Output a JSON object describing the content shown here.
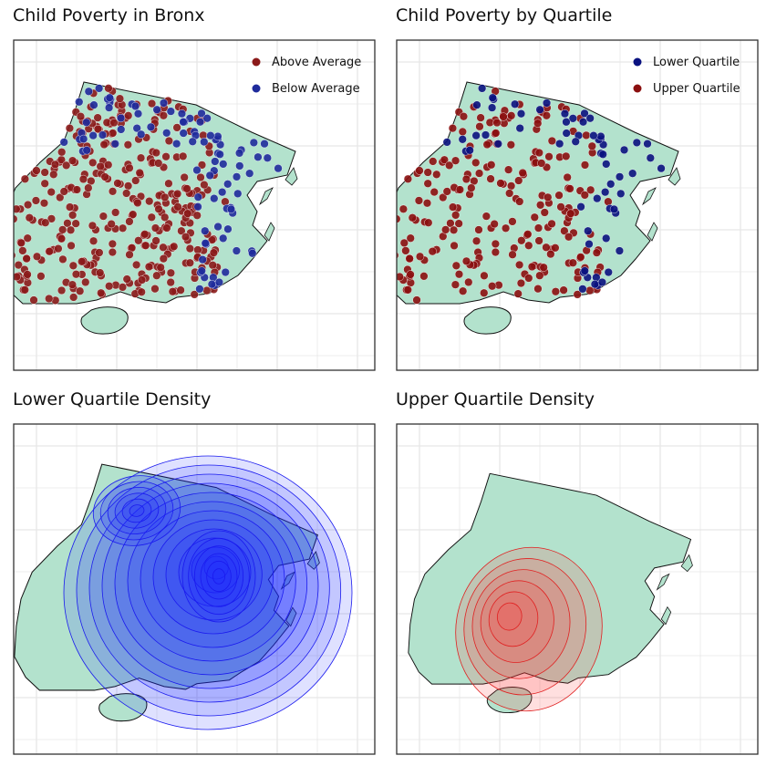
{
  "panels": [
    {
      "title": "Child Poverty in Bronx"
    },
    {
      "title": "Child Poverty by Quartile"
    },
    {
      "title": "Lower Quartile Density"
    },
    {
      "title": "Upper Quartile Density"
    }
  ],
  "colors": {
    "land_fill": "#b3e2cd",
    "land_stroke": "#111111",
    "above": "#8b1a1a",
    "below": "#1f2b9c",
    "lower_q": "#0a1280",
    "upper_q": "#8b0f0f",
    "density_lower_fill": "#1f2bff",
    "density_lower_line": "#1a1aee",
    "density_upper_fill": "#ff3b3b",
    "density_upper_line": "#e02020",
    "grid": "#e6e6e6",
    "frame": "#333333"
  },
  "chart_data": [
    {
      "type": "scatter",
      "title": "Child Poverty in Bronx",
      "grid": true,
      "legend_position": "top-right",
      "series": [
        {
          "name": "Above Average",
          "color": "#8b1a1a"
        },
        {
          "name": "Below Average",
          "color": "#1f2b9c"
        }
      ]
    },
    {
      "type": "scatter",
      "title": "Child Poverty by Quartile",
      "grid": true,
      "legend_position": "top-right",
      "series": [
        {
          "name": "Lower Quartile",
          "color": "#0a1280"
        },
        {
          "name": "Upper Quartile",
          "color": "#8b0f0f"
        }
      ]
    },
    {
      "type": "heatmap",
      "title": "Lower Quartile Density",
      "grid": true,
      "levels": 12,
      "peaks": [
        "north-west",
        "center-east"
      ]
    },
    {
      "type": "heatmap",
      "title": "Upper Quartile Density",
      "grid": true,
      "levels": 6,
      "peaks": [
        "south-west"
      ]
    }
  ]
}
